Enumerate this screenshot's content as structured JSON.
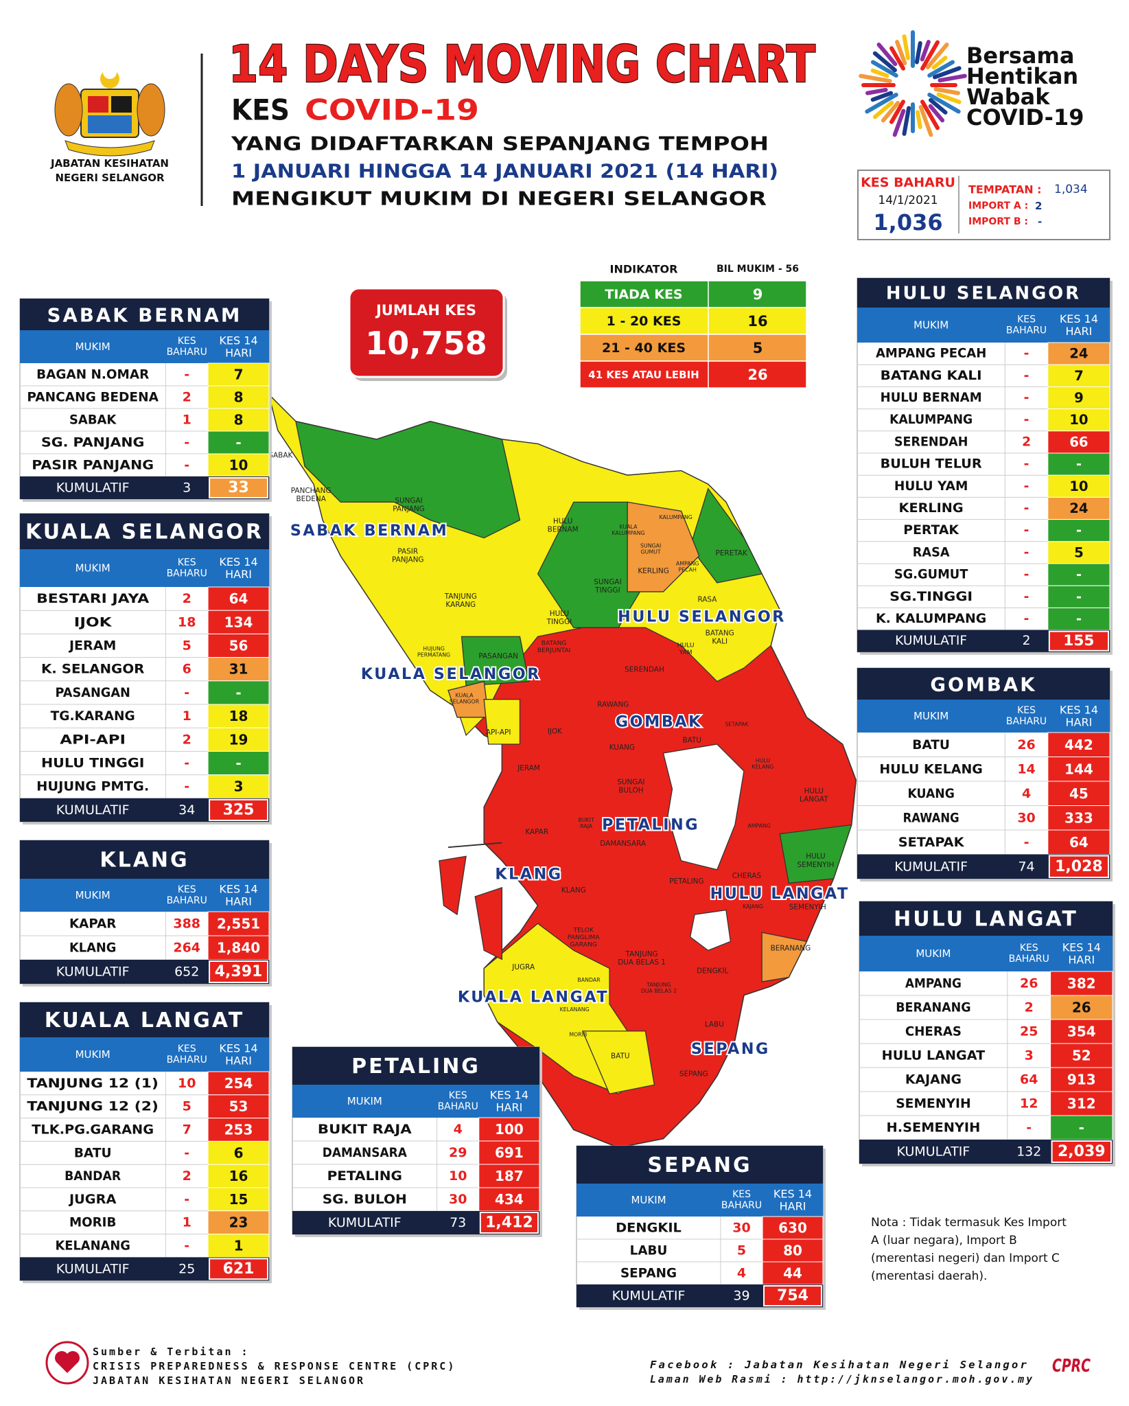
{
  "header": {
    "org_line1": "JABATAN KESIHATAN",
    "org_line2": "NEGERI SELANGOR",
    "title": "14 DAYS MOVING CHART",
    "kes": "KES",
    "covid": "COVID-19",
    "line1": "YANG DIDAFTARKAN SEPANJANG TEMPOH",
    "line2": "1 JANUARI HINGGA 14 JANUARI 2021 (14 HARI)",
    "line3": "MENGIKUT MUKIM DI NEGERI SELANGOR",
    "campaign": [
      "Bersama",
      "Hentikan",
      "Wabak",
      "COVID-19"
    ]
  },
  "new_cases": {
    "label": "KES BAHARU",
    "date": "14/1/2021",
    "total": "1,036",
    "tempatan_label": "TEMPATAN :",
    "tempatan": "1,034",
    "import_a_label": "IMPORT A :",
    "import_a": "2",
    "import_b_label": "IMPORT B :",
    "import_b": "-"
  },
  "total": {
    "label": "JUMLAH KES",
    "value": "10,758"
  },
  "indicator": {
    "title": "INDIKATOR",
    "count_label": "BIL MUKIM - 56",
    "rows": [
      {
        "label": "TIADA KES",
        "count": 9,
        "color": "#2ca02c"
      },
      {
        "label": "1 - 20 KES",
        "count": 16,
        "color": "#f7ec13"
      },
      {
        "label": "21 - 40 KES",
        "count": 5,
        "color": "#f39a3c"
      },
      {
        "label": "41 KES ATAU LEBIH",
        "count": 26,
        "color": "#e8231c"
      }
    ]
  },
  "table_headers": {
    "mukim": "MUKIM",
    "new": [
      "KES",
      "BAHARU"
    ],
    "fourteen": [
      "KES 14",
      "HARI"
    ],
    "total_label": "KUMULATIF"
  },
  "districts": [
    {
      "name": "SABAK BERNAM",
      "rows": [
        [
          "BAGAN N.OMAR",
          "-",
          "7"
        ],
        [
          "PANCANG BEDENA",
          "2",
          "8"
        ],
        [
          "SABAK",
          "1",
          "8"
        ],
        [
          "SG. PANJANG",
          "-",
          "-"
        ],
        [
          "PASIR PANJANG",
          "-",
          "10"
        ]
      ],
      "total_new": "3",
      "total_14": "33"
    },
    {
      "name": "KUALA SELANGOR",
      "rows": [
        [
          "BESTARI JAYA",
          "2",
          "64"
        ],
        [
          "IJOK",
          "18",
          "134"
        ],
        [
          "JERAM",
          "5",
          "56"
        ],
        [
          "K. SELANGOR",
          "6",
          "31"
        ],
        [
          "PASANGAN",
          "-",
          "-"
        ],
        [
          "TG.KARANG",
          "1",
          "18"
        ],
        [
          "API-API",
          "2",
          "19"
        ],
        [
          "HULU TINGGI",
          "-",
          "-"
        ],
        [
          "HUJUNG PMTG.",
          "-",
          "3"
        ]
      ],
      "total_new": "34",
      "total_14": "325"
    },
    {
      "name": "KLANG",
      "rows": [
        [
          "KAPAR",
          "388",
          "2,551"
        ],
        [
          "KLANG",
          "264",
          "1,840"
        ]
      ],
      "total_new": "652",
      "total_14": "4,391"
    },
    {
      "name": "KUALA LANGAT",
      "rows": [
        [
          "TANJUNG 12 (1)",
          "10",
          "254"
        ],
        [
          "TANJUNG 12 (2)",
          "5",
          "53"
        ],
        [
          "TLK.PG.GARANG",
          "7",
          "253"
        ],
        [
          "BATU",
          "-",
          "6"
        ],
        [
          "BANDAR",
          "2",
          "16"
        ],
        [
          "JUGRA",
          "-",
          "15"
        ],
        [
          "MORIB",
          "1",
          "23"
        ],
        [
          "KELANANG",
          "-",
          "1"
        ]
      ],
      "total_new": "25",
      "total_14": "621"
    },
    {
      "name": "PETALING",
      "rows": [
        [
          "BUKIT RAJA",
          "4",
          "100"
        ],
        [
          "DAMANSARA",
          "29",
          "691"
        ],
        [
          "PETALING",
          "10",
          "187"
        ],
        [
          "SG. BULOH",
          "30",
          "434"
        ]
      ],
      "total_new": "73",
      "total_14": "1,412"
    },
    {
      "name": "SEPANG",
      "rows": [
        [
          "DENGKIL",
          "30",
          "630"
        ],
        [
          "LABU",
          "5",
          "80"
        ],
        [
          "SEPANG",
          "4",
          "44"
        ]
      ],
      "total_new": "39",
      "total_14": "754"
    },
    {
      "name": "HULU SELANGOR",
      "rows": [
        [
          "AMPANG PECAH",
          "-",
          "24"
        ],
        [
          "BATANG KALI",
          "-",
          "7"
        ],
        [
          "HULU BERNAM",
          "-",
          "9"
        ],
        [
          "KALUMPANG",
          "-",
          "10"
        ],
        [
          "SERENDAH",
          "2",
          "66"
        ],
        [
          "BULUH TELUR",
          "-",
          "-"
        ],
        [
          "HULU YAM",
          "-",
          "10"
        ],
        [
          "KERLING",
          "-",
          "24"
        ],
        [
          "PERTAK",
          "-",
          "-"
        ],
        [
          "RASA",
          "-",
          "5"
        ],
        [
          "SG.GUMUT",
          "-",
          "-"
        ],
        [
          "SG.TINGGI",
          "-",
          "-"
        ],
        [
          "K. KALUMPANG",
          "-",
          "-"
        ]
      ],
      "total_new": "2",
      "total_14": "155"
    },
    {
      "name": "GOMBAK",
      "rows": [
        [
          "BATU",
          "26",
          "442"
        ],
        [
          "HULU KELANG",
          "14",
          "144"
        ],
        [
          "KUANG",
          "4",
          "45"
        ],
        [
          "RAWANG",
          "30",
          "333"
        ],
        [
          "SETAPAK",
          "-",
          "64"
        ]
      ],
      "total_new": "74",
      "total_14": "1,028"
    },
    {
      "name": "HULU LANGAT",
      "rows": [
        [
          "AMPANG",
          "26",
          "382"
        ],
        [
          "BERANANG",
          "2",
          "26"
        ],
        [
          "CHERAS",
          "25",
          "354"
        ],
        [
          "HULU LANGAT",
          "3",
          "52"
        ],
        [
          "KAJANG",
          "64",
          "913"
        ],
        [
          "SEMENYIH",
          "12",
          "312"
        ],
        [
          "H.SEMENYIH",
          "-",
          "-"
        ]
      ],
      "total_new": "132",
      "total_14": "2,039"
    }
  ],
  "map": {
    "labels": [
      "SABAK",
      [
        "PANCHANG",
        "BEDENA"
      ],
      [
        "SUNGAI",
        "PANJANG"
      ],
      [
        "PASIR",
        "PANJANG"
      ],
      [
        "TANJUNG",
        "KARANG"
      ],
      [
        "HUJUNG",
        "PERMATANG"
      ],
      "PASANGAN",
      [
        "KUALA",
        "SELANGOR"
      ],
      "API-API",
      "IJOK",
      "JERAM",
      [
        "BATANG",
        "BERJUNTAI"
      ],
      [
        "HULU",
        "BERNAM"
      ],
      [
        "KUALA",
        "KALUMPANG"
      ],
      "KALUMPANG",
      [
        "SUNGAI",
        "GUMUT"
      ],
      "KERLING",
      [
        "AMPANG",
        "PECAH"
      ],
      "PERETAK",
      "RASA",
      [
        "SUNGAI",
        "TINGGI"
      ],
      [
        "HULU",
        "TINGGI"
      ],
      [
        "BATANG",
        "KALI"
      ],
      [
        "HULU",
        "YAM"
      ],
      "SERENDAH",
      "RAWANG",
      "SETAPAK",
      "KUANG",
      "BATU",
      [
        "HULU",
        "KELANG"
      ],
      [
        "SUNGAI",
        "BULOH"
      ],
      [
        "HULU",
        "LANGAT"
      ],
      "AMPANG",
      [
        "BUKIT",
        "RAJA"
      ],
      "DAMANSARA",
      "KAPAR",
      [
        "HULU",
        "SEMENYIH"
      ],
      "CHERAS",
      "PETALING",
      "KLANG",
      "KAJANG",
      "SEMENYIH",
      [
        "TELOK",
        "PANGLIMA",
        "GARANG"
      ],
      [
        "TANJUNG",
        "DUA BELAS 1"
      ],
      [
        "TANJUNG",
        "DUA BELAS 2"
      ],
      "BERANANG",
      "DENGKIL",
      "JUGRA",
      "BANDAR",
      "KELANANG",
      "MORIB",
      "BATU",
      "LABU",
      "SEPANG"
    ]
  },
  "note": [
    "Nota : Tidak termasuk Kes Import",
    "A (luar negara), Import B",
    "(merentasi negeri) dan Import C",
    "(merentasi daerah)."
  ],
  "footer": {
    "source_label": "Sumber & Terbitan :",
    "source1": "CRISIS PREPAREDNESS & RESPONSE CENTRE (CPRC)",
    "source2": "JABATAN KESIHATAN NEGERI SELANGOR",
    "facebook": "Facebook : Jabatan Kesihatan Negeri Selangor",
    "web": "Laman Web Rasmi : http://jknselangor.moh.gov.my",
    "logo": "CPRC"
  }
}
